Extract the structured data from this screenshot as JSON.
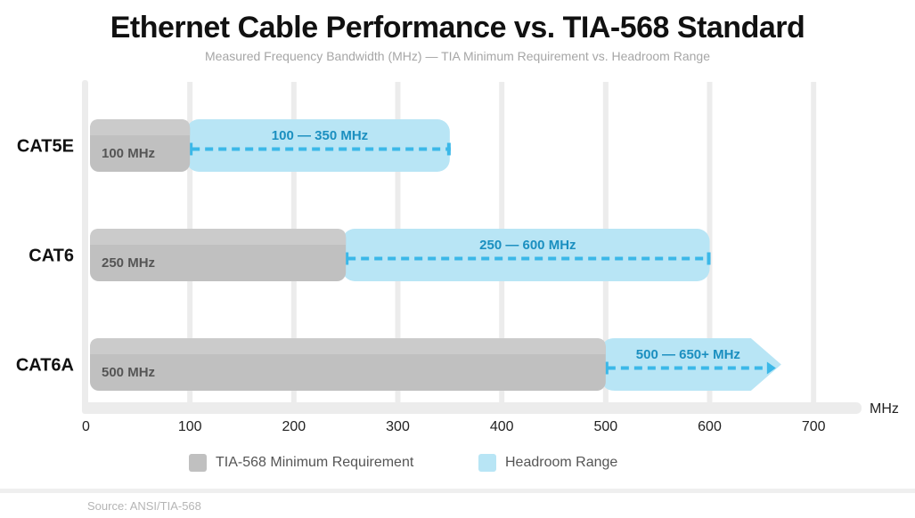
{
  "chart_data": {
    "type": "bar",
    "title": "Ethernet Cable Performance vs. TIA-568 Standard",
    "subtitle": "Measured Frequency Bandwidth (MHz) — TIA Minimum Requirement vs. Headroom Range",
    "categories": [
      "CAT5E",
      "CAT6",
      "CAT6A"
    ],
    "series": [
      {
        "name": "TIA-568 Minimum Requirement",
        "values": [
          100,
          250,
          500
        ],
        "labels": [
          "100 MHz",
          "250 MHz",
          "500 MHz"
        ],
        "color": "#c0c0c0"
      },
      {
        "name": "Headroom Range",
        "ranges": [
          [
            100,
            350
          ],
          [
            250,
            600
          ],
          [
            500,
            650
          ]
        ],
        "labels": [
          "100 — 350 MHz",
          "250 — 600 MHz",
          "500 — 650+ MHz"
        ],
        "open_ended": [
          false,
          false,
          true
        ],
        "color": "#b8e5f5",
        "line_color": "#3bb8e8"
      }
    ],
    "xlabel": "MHz",
    "xlim": [
      0,
      750
    ],
    "xticks": [
      0,
      100,
      200,
      300,
      400,
      500,
      600,
      700
    ],
    "grid": true,
    "legend": "bottom",
    "source": "Source: ANSI/TIA-568"
  }
}
